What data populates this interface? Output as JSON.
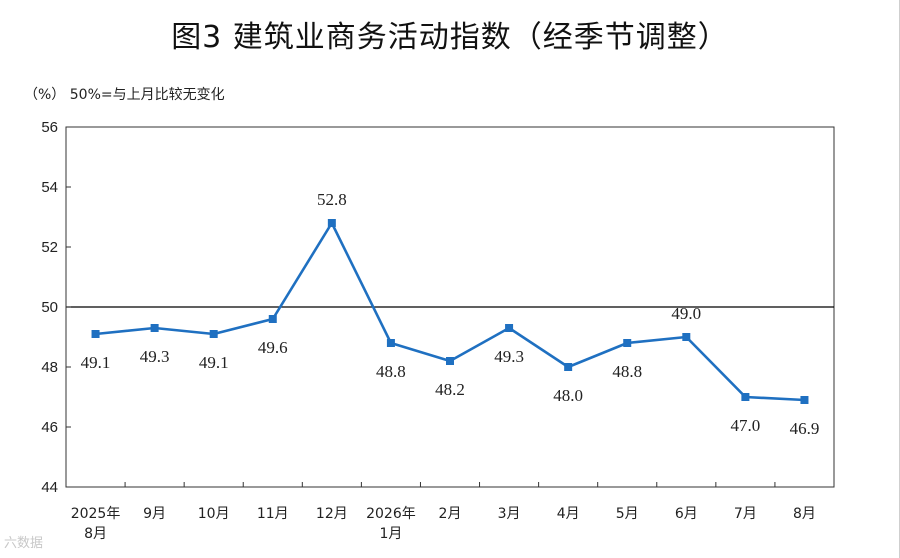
{
  "title": "图3  建筑业商务活动指数（经季节调整）",
  "unit_note": "（%）  50%=与上月比较无变化",
  "watermark": "六数据",
  "colors": {
    "series": "#1f70c1",
    "axis": "#333333",
    "reference": "#000000"
  },
  "chart_data": {
    "type": "line",
    "title": "图3  建筑业商务活动指数（经季节调整）",
    "ylabel": "（%）",
    "note": "50%=与上月比较无变化",
    "ylim": [
      44,
      56
    ],
    "yticks": [
      44,
      46,
      48,
      50,
      52,
      54,
      56
    ],
    "reference_line": 50,
    "grid": false,
    "marker": "square",
    "categories": [
      [
        "2025年",
        "8月"
      ],
      [
        "9月"
      ],
      [
        "10月"
      ],
      [
        "11月"
      ],
      [
        "12月"
      ],
      [
        "2026年",
        "1月"
      ],
      [
        "2月"
      ],
      [
        "3月"
      ],
      [
        "4月"
      ],
      [
        "5月"
      ],
      [
        "6月"
      ],
      [
        "7月"
      ],
      [
        "8月"
      ]
    ],
    "series": [
      {
        "values": [
          49.1,
          49.3,
          49.1,
          49.6,
          52.8,
          48.8,
          48.2,
          49.3,
          48.0,
          48.8,
          49.0,
          47.0,
          46.9
        ],
        "labels": [
          "49.1",
          "49.3",
          "49.1",
          "49.6",
          "52.8",
          "48.8",
          "48.2",
          "49.3",
          "48.0",
          "48.8",
          "49.0",
          "47.0",
          "46.9"
        ],
        "label_position": [
          "below",
          "below",
          "below",
          "below",
          "above",
          "below",
          "below",
          "below",
          "below",
          "below",
          "above",
          "below",
          "below"
        ]
      }
    ]
  }
}
